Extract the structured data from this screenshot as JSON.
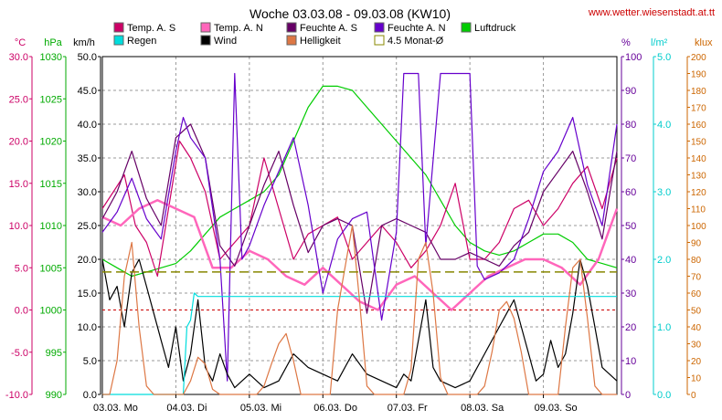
{
  "chart_data": {
    "type": "line",
    "title": "Woche 03.03.08 - 09.03.08 (KW10)",
    "source_url": "www.wetter.wiesenstadt.at.tt",
    "x_day_labels": [
      "03.03.  Mo",
      "04.03.  Di",
      "05.03.  Mi",
      "06.03.  Do",
      "07.03.  Fr",
      "08.03.  Sa",
      "09.03.  So"
    ],
    "axes": {
      "temp": {
        "unit": "°C",
        "range": [
          -10,
          30
        ],
        "ticks": [
          "30.0",
          "25.0",
          "20.0",
          "15.0",
          "10.0",
          "5.0",
          "0.0",
          "-5.0",
          "-10.0"
        ],
        "color": "#cc0066"
      },
      "pressure": {
        "unit": "hPa",
        "range": [
          990,
          1030
        ],
        "ticks": [
          "1030",
          "1025",
          "1020",
          "1015",
          "1010",
          "1005",
          "1000",
          "995",
          "990"
        ],
        "color": "#00aa00"
      },
      "wind": {
        "unit": "km/h",
        "range": [
          0,
          50
        ],
        "ticks": [
          "50.0",
          "45.0",
          "40.0",
          "35.0",
          "30.0",
          "25.0",
          "20.0",
          "15.0",
          "10.0",
          "5.0",
          "0.0"
        ],
        "color": "#000000"
      },
      "humidity": {
        "unit": "%",
        "range": [
          0,
          100
        ],
        "ticks": [
          "100",
          "90",
          "80",
          "70",
          "60",
          "50",
          "40",
          "30",
          "20",
          "10",
          "0"
        ],
        "color": "#660099"
      },
      "rain": {
        "unit": "l/m²",
        "range": [
          0,
          5
        ],
        "ticks": [
          "5.0",
          "4.0",
          "3.0",
          "2.0",
          "1.0",
          "0.0"
        ],
        "color": "#00cccc"
      },
      "light": {
        "unit": "klux",
        "range": [
          0,
          200
        ],
        "ticks": [
          "200",
          "190",
          "180",
          "170",
          "160",
          "150",
          "140",
          "130",
          "120",
          "110",
          "100",
          "90",
          "80",
          "70",
          "60",
          "50",
          "40",
          "30",
          "20",
          "10",
          "0"
        ],
        "color": "#cc6600"
      }
    },
    "legend": [
      {
        "name": "Temp. A. S",
        "color": "#cc0066"
      },
      {
        "name": "Temp. A. N",
        "color": "#ff66bb"
      },
      {
        "name": "Feuchte A. S",
        "color": "#660066"
      },
      {
        "name": "Feuchte A. N",
        "color": "#6600cc"
      },
      {
        "name": "Luftdruck",
        "color": "#00cc00"
      },
      {
        "name": "Regen",
        "color": "#00dddd"
      },
      {
        "name": "Wind",
        "color": "#000000"
      },
      {
        "name": "Helligkeit",
        "color": "#dd7744"
      },
      {
        "name": "4.5 Monat-Ø",
        "color": "#888800"
      }
    ],
    "reference_lines": {
      "temp_zero": {
        "axis": "temp",
        "value": 0,
        "color": "#cc0000"
      },
      "monthly_avg": {
        "axis": "temp",
        "value": 4.5,
        "color": "#888800"
      }
    },
    "series": [
      {
        "name": "Luftdruck",
        "axis": "pressure",
        "color": "#00cc00",
        "x": [
          0,
          0.2,
          0.4,
          0.6,
          0.8,
          1.0,
          1.2,
          1.4,
          1.6,
          1.8,
          2.0,
          2.2,
          2.4,
          2.6,
          2.8,
          3.0,
          3.2,
          3.4,
          3.6,
          3.8,
          4.0,
          4.2,
          4.4,
          4.6,
          4.8,
          5.0,
          5.2,
          5.4,
          5.6,
          5.8,
          6.0,
          6.2,
          6.4,
          6.6,
          6.8,
          7.0
        ],
        "values": [
          1006,
          1005,
          1004,
          1004.5,
          1005,
          1005.5,
          1007,
          1009,
          1011,
          1012,
          1013,
          1014,
          1016,
          1020,
          1024,
          1026.5,
          1026.5,
          1026,
          1024,
          1022,
          1020,
          1018,
          1016,
          1013,
          1010,
          1008,
          1007,
          1006.5,
          1007,
          1008,
          1009,
          1009,
          1008,
          1006,
          1005.5,
          1005
        ]
      },
      {
        "name": "Temp. A. S",
        "axis": "temp",
        "color": "#cc0066",
        "x": [
          0,
          0.15,
          0.3,
          0.45,
          0.6,
          0.75,
          0.9,
          1.05,
          1.2,
          1.4,
          1.6,
          1.8,
          2.0,
          2.2,
          2.4,
          2.6,
          2.8,
          3.0,
          3.2,
          3.4,
          3.6,
          3.8,
          4.0,
          4.2,
          4.4,
          4.6,
          4.8,
          5.0,
          5.2,
          5.4,
          5.6,
          5.8,
          6.0,
          6.2,
          6.4,
          6.6,
          6.8,
          7.0
        ],
        "values": [
          12,
          14,
          16,
          10,
          8,
          4,
          12,
          20,
          18,
          14,
          6,
          8,
          10,
          18,
          12,
          6,
          9,
          10,
          11,
          6,
          8,
          10,
          8,
          5,
          7,
          10,
          15,
          6,
          6,
          8,
          12,
          13,
          10,
          12,
          15,
          17,
          12,
          18
        ]
      },
      {
        "name": "Temp. A. N",
        "axis": "temp",
        "color": "#ff66bb",
        "x": [
          0,
          0.25,
          0.5,
          0.75,
          1.0,
          1.25,
          1.5,
          1.75,
          2.0,
          2.25,
          2.5,
          2.75,
          3.0,
          3.25,
          3.5,
          3.75,
          4.0,
          4.25,
          4.5,
          4.75,
          5.0,
          5.25,
          5.5,
          5.75,
          6.0,
          6.25,
          6.5,
          6.75,
          7.0
        ],
        "values": [
          11,
          10,
          12,
          13,
          12,
          11,
          5,
          5,
          7,
          6,
          4,
          3,
          5,
          3,
          1,
          0,
          3,
          4,
          2,
          0,
          2,
          4,
          5,
          6,
          6,
          5,
          3,
          6,
          12
        ]
      },
      {
        "name": "Feuchte A. S",
        "axis": "humidity",
        "color": "#660066",
        "x": [
          0,
          0.2,
          0.4,
          0.6,
          0.8,
          1.0,
          1.2,
          1.4,
          1.6,
          1.8,
          2.0,
          2.2,
          2.4,
          2.6,
          2.8,
          3.0,
          3.2,
          3.4,
          3.6,
          3.8,
          4.0,
          4.2,
          4.4,
          4.6,
          4.8,
          5.0,
          5.2,
          5.4,
          5.6,
          5.8,
          6.0,
          6.2,
          6.4,
          6.6,
          6.8,
          7.0
        ],
        "values": [
          52,
          60,
          72,
          58,
          50,
          76,
          80,
          70,
          44,
          38,
          50,
          62,
          72,
          56,
          42,
          50,
          52,
          50,
          24,
          50,
          52,
          50,
          48,
          40,
          40,
          42,
          40,
          38,
          44,
          48,
          60,
          66,
          72,
          60,
          46,
          72
        ]
      },
      {
        "name": "Feuchte A. N",
        "axis": "humidity",
        "color": "#6600cc",
        "x": [
          0,
          0.2,
          0.4,
          0.6,
          0.8,
          1.0,
          1.1,
          1.2,
          1.4,
          1.6,
          1.7,
          1.8,
          1.9,
          2.0,
          2.2,
          2.4,
          2.6,
          2.8,
          3.0,
          3.2,
          3.4,
          3.6,
          3.8,
          4.0,
          4.1,
          4.2,
          4.3,
          4.4,
          4.6,
          4.8,
          5.0,
          5.1,
          5.2,
          5.4,
          5.6,
          5.8,
          6.0,
          6.2,
          6.4,
          6.6,
          6.8,
          7.0
        ],
        "values": [
          48,
          54,
          64,
          52,
          46,
          72,
          82,
          76,
          70,
          40,
          4,
          95,
          40,
          44,
          56,
          66,
          76,
          56,
          30,
          46,
          52,
          54,
          22,
          48,
          95,
          95,
          95,
          44,
          95,
          95,
          95,
          38,
          34,
          36,
          40,
          52,
          66,
          72,
          82,
          62,
          50,
          80
        ]
      },
      {
        "name": "Wind",
        "axis": "wind",
        "color": "#000000",
        "x": [
          0,
          0.1,
          0.2,
          0.3,
          0.4,
          0.5,
          0.6,
          0.7,
          0.8,
          0.9,
          1.0,
          1.1,
          1.2,
          1.3,
          1.4,
          1.5,
          1.6,
          1.7,
          1.8,
          1.9,
          2.0,
          2.2,
          2.4,
          2.6,
          2.8,
          3.0,
          3.2,
          3.4,
          3.6,
          3.8,
          4.0,
          4.1,
          4.2,
          4.3,
          4.4,
          4.5,
          4.6,
          4.8,
          5.0,
          5.2,
          5.4,
          5.5,
          5.6,
          5.7,
          5.8,
          5.9,
          6.0,
          6.1,
          6.2,
          6.3,
          6.4,
          6.5,
          6.6,
          6.7,
          6.8,
          7.0
        ],
        "values": [
          20,
          14,
          16,
          10,
          18,
          20,
          16,
          12,
          8,
          4,
          10,
          2,
          6,
          14,
          4,
          2,
          6,
          3,
          1,
          2,
          3,
          1,
          2,
          6,
          4,
          3,
          2,
          6,
          3,
          2,
          1,
          3,
          2,
          8,
          14,
          4,
          2,
          1,
          2,
          6,
          10,
          12,
          14,
          10,
          6,
          2,
          3,
          8,
          4,
          6,
          12,
          20,
          16,
          10,
          4,
          2
        ]
      },
      {
        "name": "Regen",
        "axis": "rain",
        "color": "#00dddd",
        "x": [
          0,
          1.1,
          1.15,
          1.2,
          1.25,
          1.3,
          2.0,
          3.0,
          4.0,
          5.0,
          6.0,
          7.0
        ],
        "values": [
          0,
          0,
          1.0,
          1.1,
          1.5,
          1.45,
          1.45,
          1.45,
          1.45,
          1.45,
          1.45,
          1.45
        ]
      },
      {
        "name": "Helligkeit",
        "axis": "light",
        "color": "#dd7744",
        "x": [
          0,
          0.1,
          0.2,
          0.3,
          0.4,
          0.5,
          0.6,
          0.7,
          0.8,
          0.9,
          1.0,
          1.1,
          1.2,
          1.3,
          1.4,
          1.5,
          1.6,
          1.7,
          1.8,
          1.9,
          2.0,
          2.1,
          2.2,
          2.3,
          2.4,
          2.5,
          2.6,
          2.7,
          2.8,
          2.9,
          3.0,
          3.1,
          3.2,
          3.4,
          3.5,
          3.6,
          3.7,
          3.8,
          3.9,
          4.0,
          4.1,
          4.2,
          4.3,
          4.4,
          4.5,
          4.6,
          4.7,
          4.8,
          4.9,
          5.0,
          5.1,
          5.2,
          5.3,
          5.4,
          5.5,
          5.6,
          5.7,
          5.8,
          5.9,
          6.0,
          6.1,
          6.2,
          6.3,
          6.4,
          6.5,
          6.6,
          6.7,
          6.8,
          6.9,
          7.0
        ],
        "values": [
          0,
          0,
          20,
          70,
          90,
          40,
          5,
          0,
          0,
          0,
          0,
          0,
          8,
          22,
          18,
          3,
          0,
          0,
          0,
          0,
          0,
          0,
          5,
          18,
          30,
          36,
          20,
          0,
          0,
          0,
          0,
          0,
          50,
          100,
          55,
          5,
          0,
          0,
          0,
          0,
          0,
          15,
          80,
          90,
          60,
          10,
          0,
          0,
          0,
          0,
          0,
          5,
          25,
          50,
          55,
          45,
          25,
          0,
          0,
          0,
          0,
          0,
          40,
          75,
          80,
          45,
          5,
          0,
          0,
          0
        ]
      },
      {
        "name": "4.5 Monat-Ø",
        "axis": "temp",
        "color": "#888800",
        "x": [
          0,
          7
        ],
        "values": [
          4.5,
          4.5
        ]
      }
    ]
  }
}
